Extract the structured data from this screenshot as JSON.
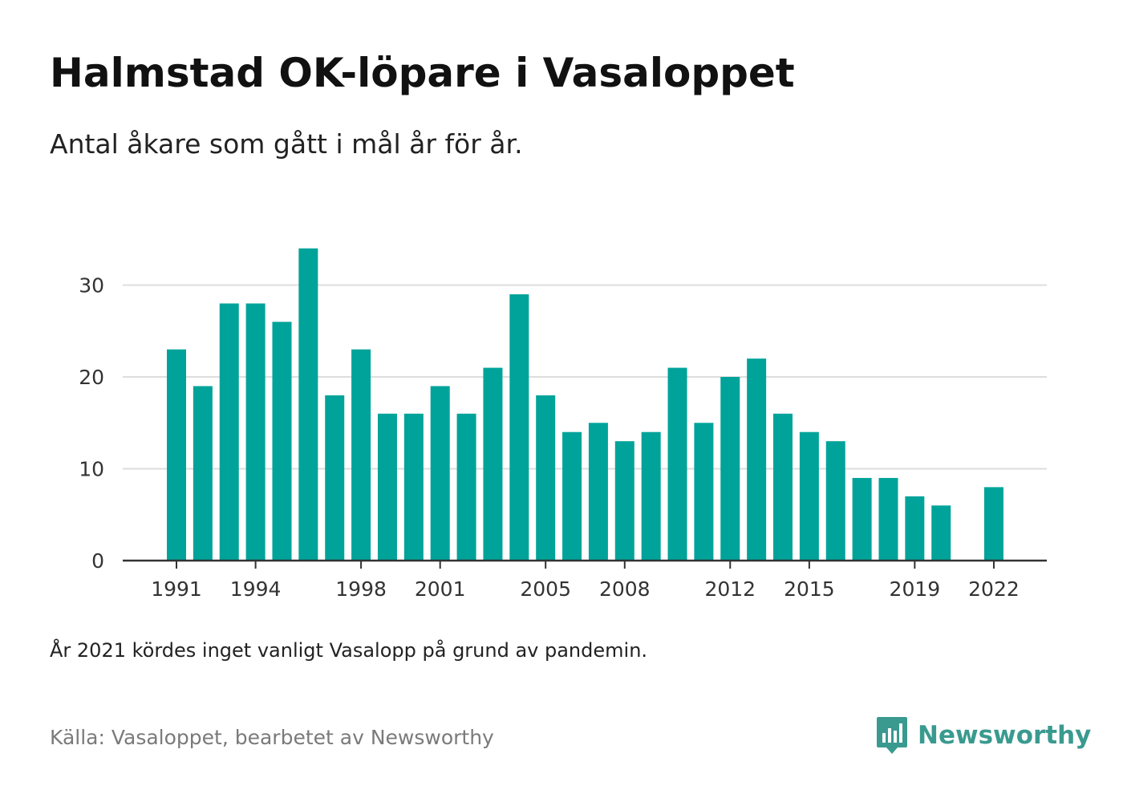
{
  "header": {
    "title": "Halmstad OK-löpare i Vasaloppet",
    "subtitle": "Antal åkare som gått i mål år för år."
  },
  "footer": {
    "note": "År 2021 kördes inget vanligt Vasalopp på grund av pandemin.",
    "source": "Källa: Vasaloppet, bearbetet av Newsworthy",
    "brand": "Newsworthy",
    "brand_icon": "bar-chart-speech-bubble-icon"
  },
  "colors": {
    "bar": "#00a39a",
    "grid": "#dddddd",
    "axis": "#333333",
    "brand": "#3a9a8f"
  },
  "chart_data": {
    "type": "bar",
    "title": "Halmstad OK-löpare i Vasaloppet",
    "subtitle": "Antal åkare som gått i mål år för år.",
    "xlabel": "",
    "ylabel": "",
    "categories": [
      1991,
      1992,
      1993,
      1994,
      1995,
      1996,
      1997,
      1998,
      1999,
      2000,
      2001,
      2002,
      2003,
      2004,
      2005,
      2006,
      2007,
      2008,
      2009,
      2010,
      2011,
      2012,
      2013,
      2014,
      2015,
      2016,
      2017,
      2018,
      2019,
      2020,
      2021,
      2022
    ],
    "values": [
      23,
      19,
      28,
      28,
      26,
      34,
      18,
      23,
      16,
      16,
      19,
      16,
      21,
      29,
      18,
      14,
      15,
      13,
      14,
      21,
      15,
      20,
      22,
      16,
      14,
      13,
      9,
      9,
      7,
      6,
      null,
      8
    ],
    "x_tick_labels": [
      "1991",
      "1994",
      "1998",
      "2001",
      "2005",
      "2008",
      "2012",
      "2015",
      "2019",
      "2022"
    ],
    "y_ticks": [
      0,
      10,
      20,
      30
    ],
    "ylim": [
      0,
      35
    ],
    "grid": true,
    "legend": "none"
  }
}
